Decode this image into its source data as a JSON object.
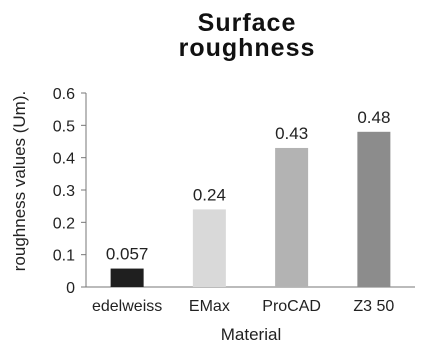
{
  "chart_data": {
    "type": "bar",
    "title_lines": [
      "Surface",
      "roughness"
    ],
    "xlabel": "Material",
    "ylabel": "roughness values (Um).",
    "categories": [
      "edelweiss",
      "EMax",
      "ProCAD",
      "Z3 50"
    ],
    "values": [
      0.057,
      0.24,
      0.43,
      0.48
    ],
    "data_labels": [
      "0.057",
      "0.24",
      "0.43",
      "0.48"
    ],
    "bar_colors": [
      "#1f1f1f",
      "#d9d9d9",
      "#b3b3b3",
      "#8c8c8c"
    ],
    "yticks": [
      "0",
      "0.1",
      "0.2",
      "0.3",
      "0.4",
      "0.5",
      "0.6"
    ],
    "ylim": [
      0,
      0.6
    ],
    "grid": false,
    "legend": "none"
  }
}
